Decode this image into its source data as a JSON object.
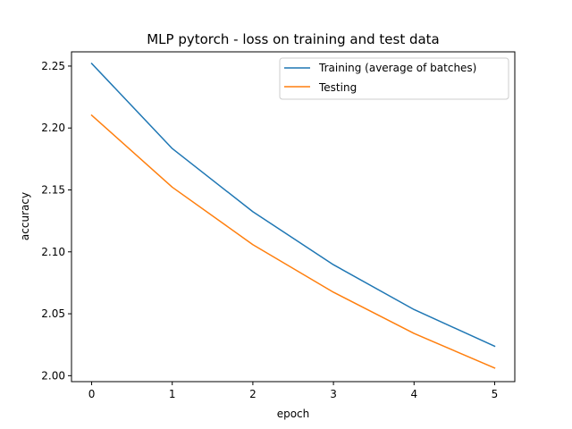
{
  "chart_data": {
    "type": "line",
    "title": "MLP pytorch - loss on training and test data",
    "xlabel": "epoch",
    "ylabel": "accuracy",
    "x": [
      0,
      1,
      2,
      3,
      4,
      5
    ],
    "xlim": [
      -0.25,
      5.25
    ],
    "ylim": [
      1.9952,
      2.2615
    ],
    "xticks": [
      "0",
      "1",
      "2",
      "3",
      "4",
      "5"
    ],
    "yticks": [
      "2.00",
      "2.05",
      "2.10",
      "2.15",
      "2.20",
      "2.25"
    ],
    "grid": false,
    "legend_position": "top-right",
    "series": [
      {
        "name": "Training (average of batches)",
        "color": "#1f77b4",
        "values": [
          2.2521,
          2.1834,
          2.1324,
          2.0896,
          2.0534,
          2.0238
        ]
      },
      {
        "name": "Testing",
        "color": "#ff7f0e",
        "values": [
          2.2103,
          2.1522,
          2.1058,
          2.0674,
          2.0341,
          2.0062
        ]
      }
    ]
  }
}
